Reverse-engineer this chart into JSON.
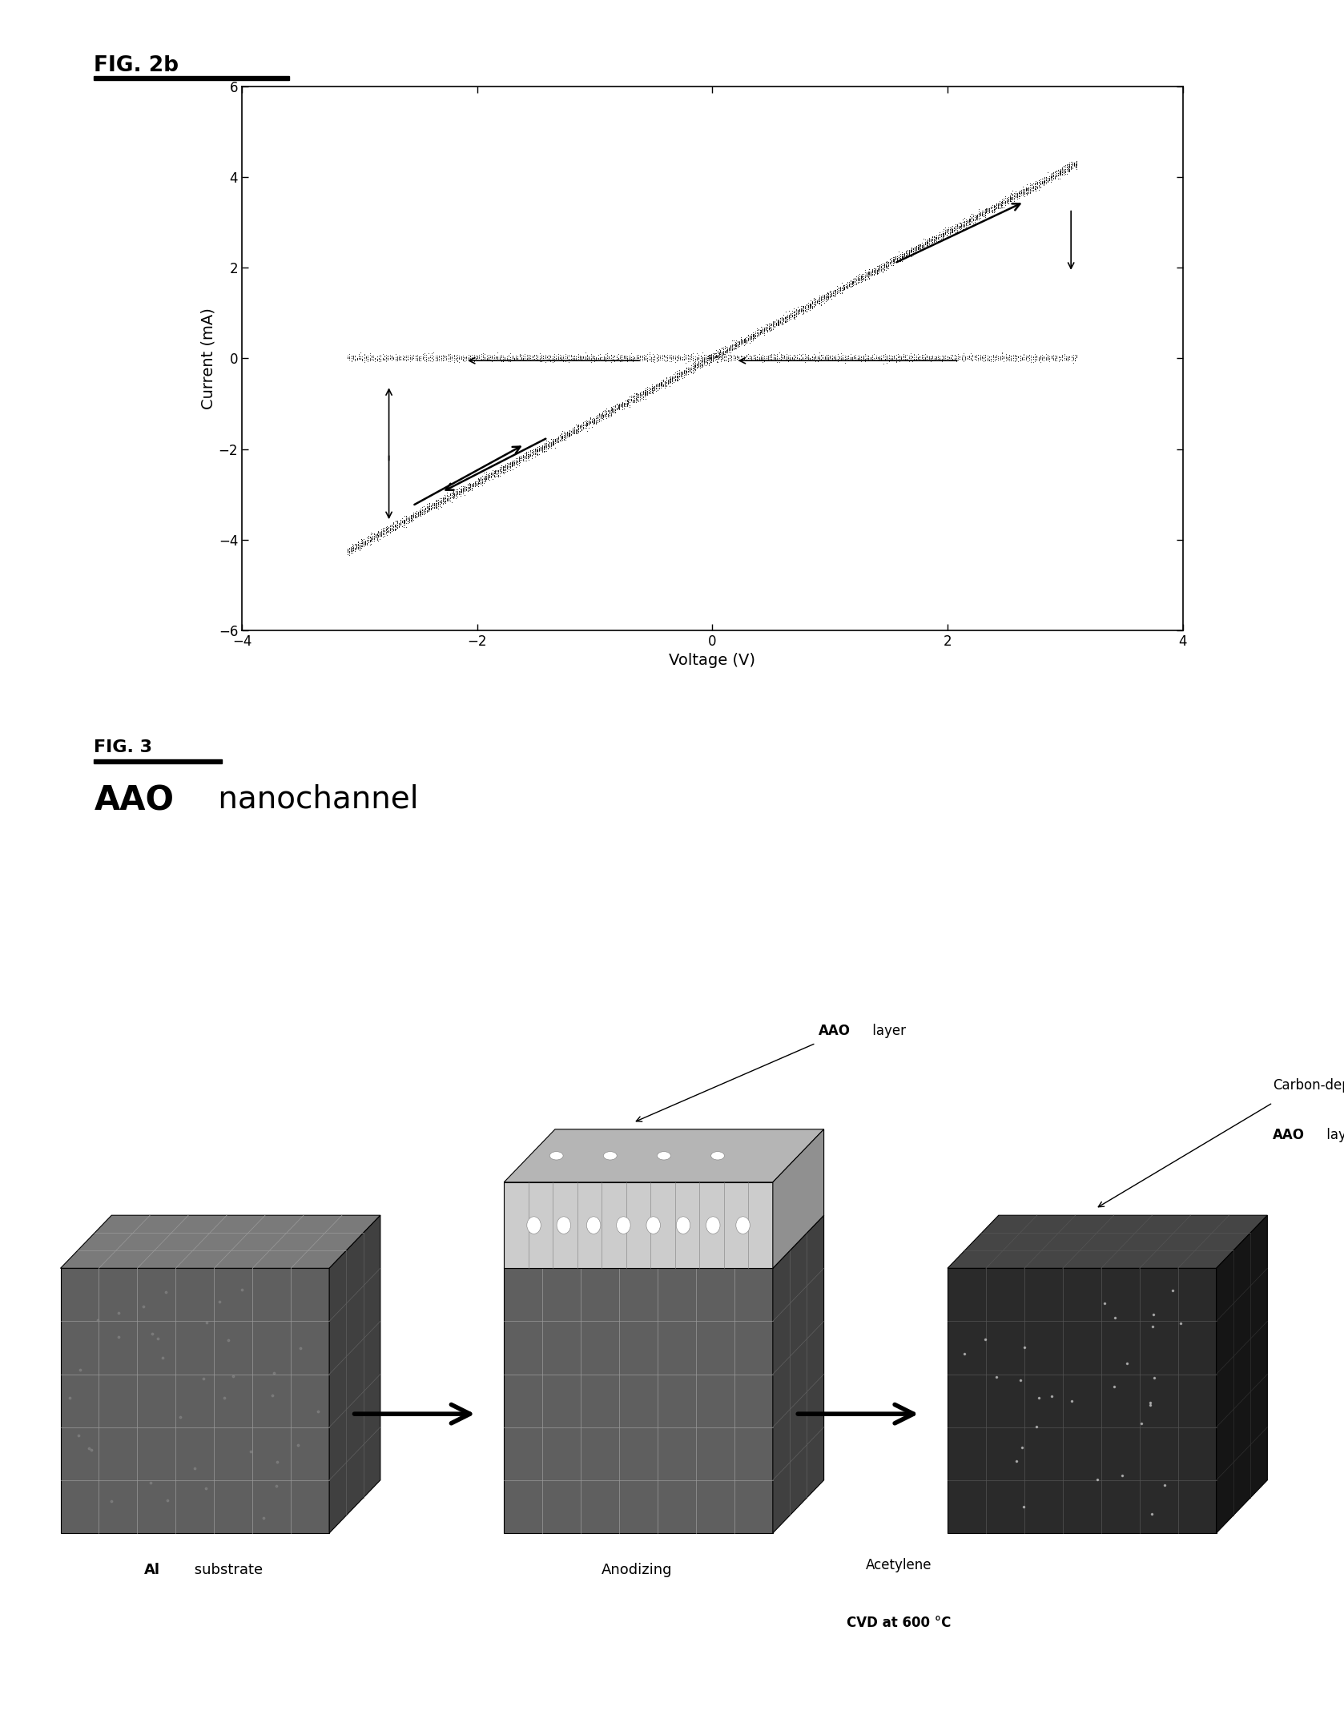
{
  "fig2b_label": "FIG. 2b",
  "fig3_label": "FIG. 3",
  "xlabel": "Voltage (V)",
  "ylabel": "Current (mA)",
  "xlim": [
    -4,
    4
  ],
  "ylim": [
    -6,
    6
  ],
  "xticks": [
    -4,
    -2,
    0,
    2,
    4
  ],
  "yticks": [
    -6,
    -4,
    -2,
    0,
    2,
    4,
    6
  ],
  "label_al_bold": "Al",
  "label_al_rest": " substrate",
  "label_aao_bold": "AAO",
  "label_aao_rest": " layer",
  "label_carbon_line1": "Carbon-deposited",
  "label_carbon_bold": "AAO",
  "label_carbon_rest": " layer",
  "label_anodizing": "Anodizing",
  "label_acetylene": "Acetylene",
  "label_cvd": "CVD at 600 °C",
  "fig3_subtitle_bold": "AAO",
  "fig3_subtitle_rest": " nanochannel",
  "bg_color": "#ffffff"
}
